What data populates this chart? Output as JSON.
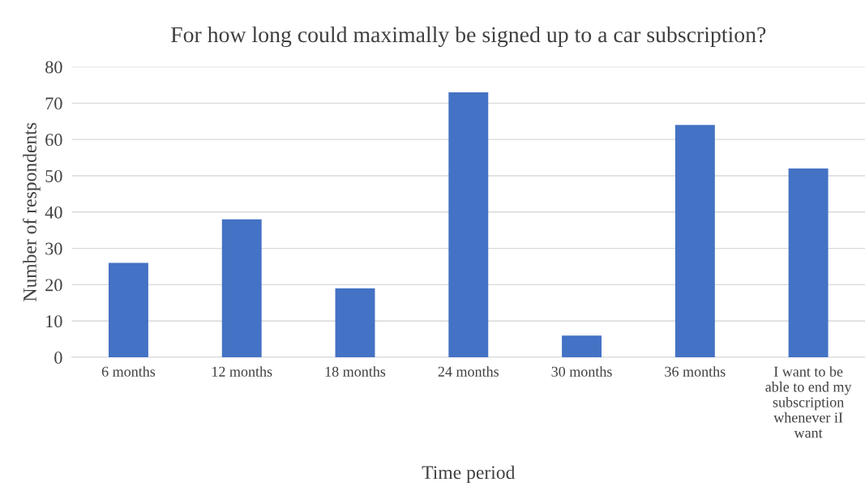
{
  "chart_data": {
    "type": "bar",
    "title": "For how long could maximally be signed up to a car subscription?",
    "xlabel": "Time period",
    "ylabel": "Number of respondents",
    "categories": [
      "6 months",
      "12 months",
      "18 months",
      "24 months",
      "30 months",
      "36 months",
      "I want to be able to end my subscription whenever iI want"
    ],
    "values": [
      26,
      38,
      19,
      73,
      6,
      64,
      52
    ],
    "color": "#4472c4",
    "ylim": [
      0,
      80
    ],
    "yticks": [
      0,
      10,
      20,
      30,
      40,
      50,
      60,
      70,
      80
    ],
    "grid": "y",
    "legend": false
  }
}
